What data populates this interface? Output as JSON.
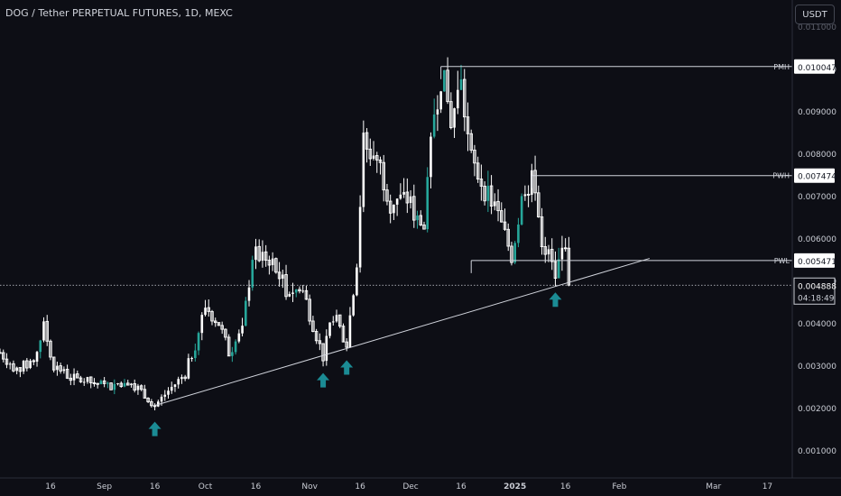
{
  "header": {
    "symbol_title": "DOG / Tether PERPETUAL FUTURES, 1D, MEXC",
    "currency_button": "USDT"
  },
  "price_scale": {
    "ticks": [
      "0.010000",
      "0.009000",
      "0.008000",
      "0.007000",
      "0.006000",
      "0.005000",
      "0.004000",
      "0.003000",
      "0.002000",
      "0.001000"
    ],
    "top_partial": "0.011000"
  },
  "time_scale": {
    "ticks": [
      "16",
      "Sep",
      "16",
      "Oct",
      "16",
      "Nov",
      "16",
      "Dec",
      "16",
      "2025",
      "16",
      "Feb",
      "Mar",
      "17"
    ]
  },
  "levels": [
    {
      "label": "PMH",
      "value": "0.010047"
    },
    {
      "label": "PWH",
      "value": "0.007474"
    },
    {
      "label": "PWL",
      "value": "0.005471"
    }
  ],
  "last_price": {
    "value": "0.004888",
    "countdown": "04:18:49"
  },
  "colors": {
    "background": "#0d0e15",
    "up": "#ffffff",
    "down": "#ffffff",
    "up_alt": "#26a69a",
    "arrow": "#1b8b94",
    "text": "#c9ccd4",
    "grid_line": "#2a2e39"
  },
  "chart_data": {
    "type": "candlestick",
    "title": "DOG / Tether PERPETUAL FUTURES, 1D, MEXC",
    "ylim": [
      0.0003,
      0.0112
    ],
    "y_ticks": [
      0.01,
      0.009,
      0.008,
      0.007,
      0.006,
      0.005,
      0.004,
      0.003,
      0.002,
      0.001
    ],
    "trendline": {
      "from": {
        "x": "2024-09-16",
        "y": 0.00205
      },
      "to": {
        "x": "2025-02-10",
        "y": 0.00552
      }
    },
    "horizontal_levels": [
      {
        "label": "PMH",
        "value": 0.010047,
        "from": "2024-12-10"
      },
      {
        "label": "PWH",
        "value": 0.007474,
        "from": "2025-01-06"
      },
      {
        "label": "PWL",
        "value": 0.005471,
        "from": "2024-12-19"
      }
    ],
    "support_arrows": [
      "2024-09-16",
      "2024-11-05",
      "2024-11-12",
      "2025-01-13"
    ],
    "last_price": 0.004888,
    "close_path": [
      [
        "2024-08-01",
        0.0033
      ],
      [
        "2024-08-06",
        0.0029
      ],
      [
        "2024-08-11",
        0.0031
      ],
      [
        "2024-08-14",
        0.0039
      ],
      [
        "2024-08-17",
        0.003
      ],
      [
        "2024-08-22",
        0.0027
      ],
      [
        "2024-08-28",
        0.0026
      ],
      [
        "2024-09-02",
        0.0025
      ],
      [
        "2024-09-08",
        0.00265
      ],
      [
        "2024-09-12",
        0.0024
      ],
      [
        "2024-09-16",
        0.00205
      ],
      [
        "2024-09-20",
        0.0024
      ],
      [
        "2024-09-25",
        0.0028
      ],
      [
        "2024-09-28",
        0.0035
      ],
      [
        "2024-10-01",
        0.0044
      ],
      [
        "2024-10-05",
        0.004
      ],
      [
        "2024-10-08",
        0.0033
      ],
      [
        "2024-10-12",
        0.0038
      ],
      [
        "2024-10-15",
        0.0056
      ],
      [
        "2024-10-20",
        0.00555
      ],
      [
        "2024-10-25",
        0.0048
      ],
      [
        "2024-10-30",
        0.00475
      ],
      [
        "2024-11-05",
        0.0032
      ],
      [
        "2024-11-08",
        0.0042
      ],
      [
        "2024-11-12",
        0.0035
      ],
      [
        "2024-11-15",
        0.0055
      ],
      [
        "2024-11-17",
        0.0082
      ],
      [
        "2024-11-21",
        0.0079
      ],
      [
        "2024-11-25",
        0.0069
      ],
      [
        "2024-11-30",
        0.0069
      ],
      [
        "2024-12-05",
        0.0062
      ],
      [
        "2024-12-08",
        0.009
      ],
      [
        "2024-12-10",
        0.0099
      ],
      [
        "2024-12-13",
        0.0088
      ],
      [
        "2024-12-16",
        0.0096
      ],
      [
        "2024-12-19",
        0.0078
      ],
      [
        "2024-12-23",
        0.0072
      ],
      [
        "2024-12-27",
        0.0065
      ],
      [
        "2024-12-31",
        0.0056
      ],
      [
        "2025-01-04",
        0.0073
      ],
      [
        "2025-01-07",
        0.0073
      ],
      [
        "2025-01-09",
        0.006
      ],
      [
        "2025-01-13",
        0.0051
      ],
      [
        "2025-01-16",
        0.006
      ],
      [
        "2025-01-17",
        0.00488
      ]
    ]
  }
}
